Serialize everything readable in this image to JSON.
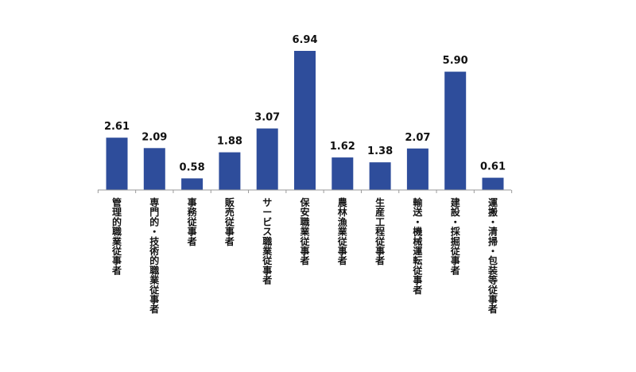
{
  "chart_data": {
    "type": "bar",
    "title": "",
    "xlabel": "",
    "ylabel": "",
    "categories": [
      "管理的職業従事者",
      "専門的・技術的職業従事者",
      "事務従事者",
      "販売従事者",
      "サービス職業従事者",
      "保安職業従事者",
      "農林漁業従事者",
      "生産工程従事者",
      "輸送・機械運転従事者",
      "建設・採掘従事者",
      "運搬・清掃・包装等従事者"
    ],
    "values": [
      2.61,
      2.09,
      0.58,
      1.88,
      3.07,
      6.94,
      1.62,
      1.38,
      2.07,
      5.9,
      0.61
    ],
    "value_labels": [
      "2.61",
      "2.09",
      "0.58",
      "1.88",
      "3.07",
      "6.94",
      "1.62",
      "1.38",
      "2.07",
      "5.90",
      "0.61"
    ],
    "ylim": [
      0,
      7
    ],
    "grid": false,
    "legend": "none",
    "colors": {
      "bar": "#2E4D9B",
      "axis": "#9a9a9a",
      "text": "#111111"
    }
  }
}
